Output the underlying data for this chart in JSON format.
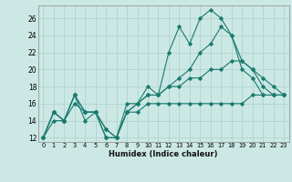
{
  "title": "",
  "xlabel": "Humidex (Indice chaleur)",
  "ylabel": "",
  "background_color": "#cce8e4",
  "grid_color": "#aed4cf",
  "line_color": "#1a7a6e",
  "xlim": [
    -0.5,
    23.5
  ],
  "ylim": [
    11.5,
    27.5
  ],
  "yticks": [
    12,
    14,
    16,
    18,
    20,
    22,
    24,
    26
  ],
  "xticks": [
    0,
    1,
    2,
    3,
    4,
    5,
    6,
    7,
    8,
    9,
    10,
    11,
    12,
    13,
    14,
    15,
    16,
    17,
    18,
    19,
    20,
    21,
    22,
    23
  ],
  "series": [
    [
      12,
      15,
      14,
      17,
      14,
      15,
      13,
      12,
      15,
      16,
      18,
      17,
      22,
      25,
      23,
      26,
      27,
      26,
      24,
      20,
      19,
      17,
      17,
      17
    ],
    [
      12,
      15,
      14,
      17,
      15,
      15,
      12,
      12,
      16,
      16,
      17,
      17,
      18,
      19,
      20,
      22,
      23,
      25,
      24,
      21,
      20,
      19,
      18,
      17
    ],
    [
      12,
      14,
      14,
      16,
      15,
      15,
      12,
      12,
      15,
      15,
      16,
      16,
      16,
      16,
      16,
      16,
      16,
      16,
      16,
      16,
      17,
      17,
      17,
      17
    ],
    [
      12,
      15,
      14,
      17,
      15,
      15,
      13,
      12,
      15,
      16,
      17,
      17,
      18,
      18,
      19,
      19,
      20,
      20,
      21,
      21,
      20,
      18,
      17,
      17
    ]
  ]
}
